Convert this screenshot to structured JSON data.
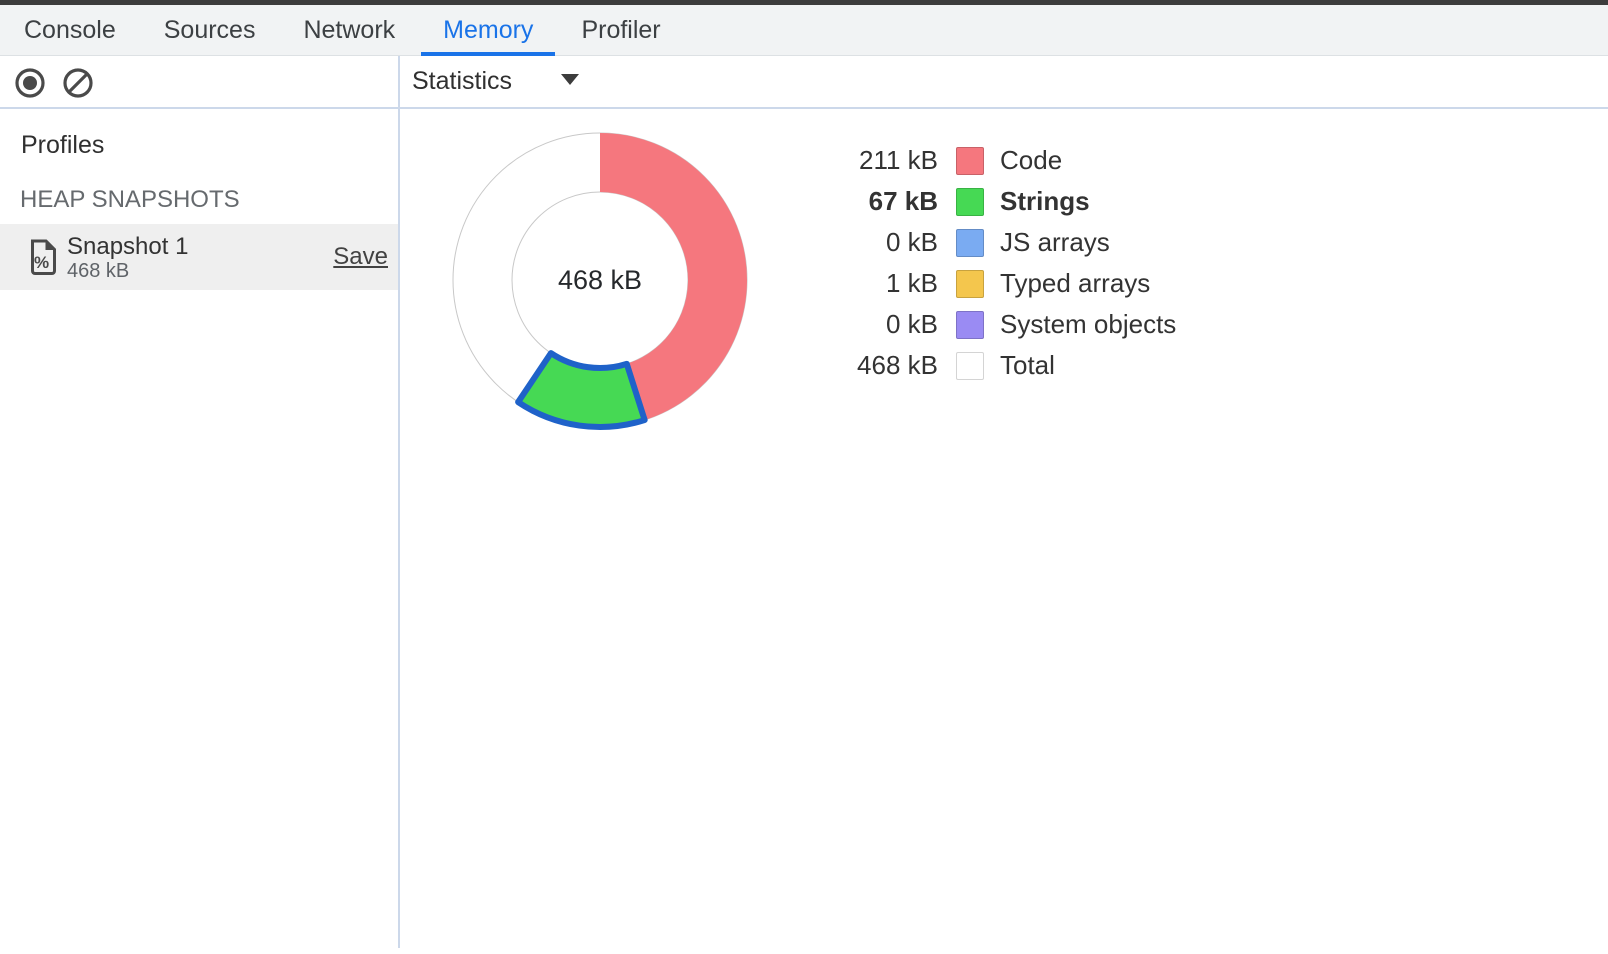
{
  "tabs": {
    "items": [
      {
        "label": "Console",
        "active": false
      },
      {
        "label": "Sources",
        "active": false
      },
      {
        "label": "Network",
        "active": false
      },
      {
        "label": "Memory",
        "active": true
      },
      {
        "label": "Profiler",
        "active": false
      }
    ]
  },
  "toolbar": {
    "record_icon": "record-heap-snapshot-icon",
    "clear_icon": "clear-all-profiles-icon",
    "view_selector": {
      "value": "Statistics"
    }
  },
  "sidebar": {
    "profiles_title": "Profiles",
    "section_heading": "HEAP SNAPSHOTS",
    "snapshots": [
      {
        "name": "Snapshot 1",
        "size": "468 kB",
        "action_label": "Save",
        "selected": true
      }
    ]
  },
  "chart_data": {
    "type": "pie",
    "center_label": "468 kB",
    "total_kb": 468,
    "legend_position": "right",
    "series": [
      {
        "label": "Code",
        "size_label": "211 kB",
        "value_kb": 211,
        "color": "#f5777e",
        "highlighted": false,
        "is_total": false
      },
      {
        "label": "Strings",
        "size_label": "67 kB",
        "value_kb": 67,
        "color": "#46d954",
        "highlighted": true,
        "is_total": false
      },
      {
        "label": "JS arrays",
        "size_label": "0 kB",
        "value_kb": 0,
        "color": "#7aabf2",
        "highlighted": false,
        "is_total": false
      },
      {
        "label": "Typed arrays",
        "size_label": "1 kB",
        "value_kb": 1,
        "color": "#f4c64d",
        "highlighted": false,
        "is_total": false
      },
      {
        "label": "System objects",
        "size_label": "0 kB",
        "value_kb": 0,
        "color": "#9a8bf3",
        "highlighted": false,
        "is_total": false
      },
      {
        "label": "Total",
        "size_label": "468 kB",
        "value_kb": 468,
        "color": "#ffffff",
        "highlighted": false,
        "is_total": true
      }
    ],
    "highlight_stroke": "#1f62c9",
    "ring_outline_color": "#c8c8c8"
  },
  "colors": {
    "accent": "#1a73e8",
    "hairline": "#ccd8ea",
    "selection_bg": "#efefef",
    "icon": "#4a4a4a"
  }
}
